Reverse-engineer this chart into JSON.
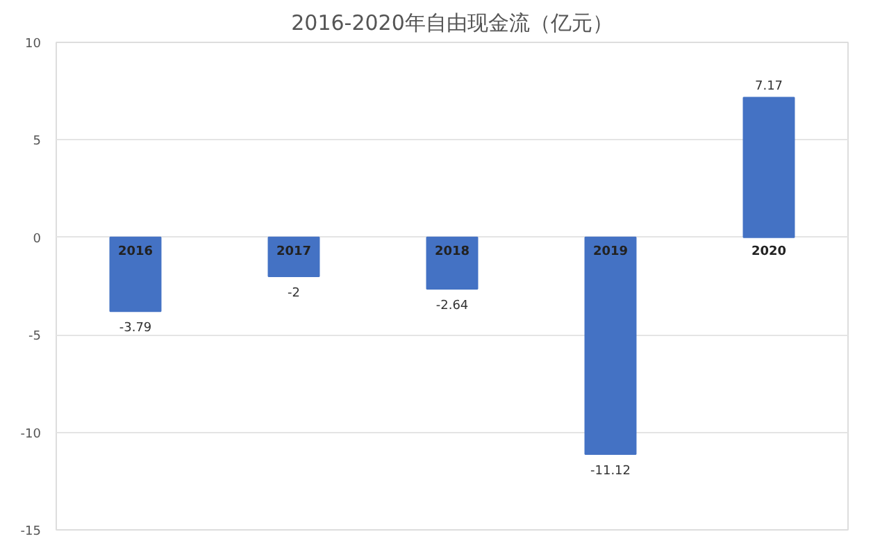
{
  "chart_data": {
    "type": "bar",
    "title": "2016-2020年自由现金流（亿元）",
    "categories": [
      "2016",
      "2017",
      "2018",
      "2019",
      "2020"
    ],
    "values": [
      -3.79,
      -2,
      -2.64,
      -11.12,
      7.17
    ],
    "color": "#4472c4",
    "ylim": [
      -15,
      10
    ],
    "yticks": [
      -15,
      -10,
      -5,
      0,
      5,
      10
    ],
    "grid": "y",
    "data_labels": true
  }
}
